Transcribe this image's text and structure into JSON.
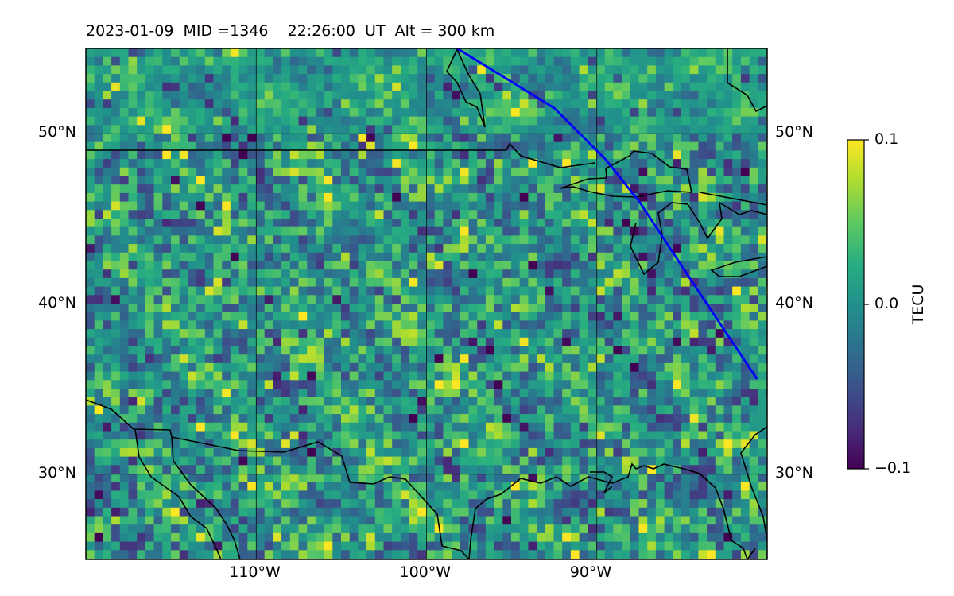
{
  "title": {
    "date": "2023-01-09",
    "mid": "MID =1346",
    "time": "22:26:00  UT",
    "alt": "Alt = 300 km"
  },
  "map": {
    "projection": "equirectangular",
    "lon_range": [
      -120,
      -80
    ],
    "lat_range": [
      25,
      55
    ],
    "gridlines": true,
    "lon_ticks": [
      {
        "value": -110,
        "label": "110°W"
      },
      {
        "value": -100,
        "label": "100°W"
      },
      {
        "value": -90,
        "label": "90°W"
      }
    ],
    "lat_ticks": [
      {
        "value": 50,
        "label": "50°N"
      },
      {
        "value": 40,
        "label": "40°N"
      },
      {
        "value": 30,
        "label": "30°N"
      }
    ],
    "field": "differential TEC, noisy mottled pattern, stronger positive patches near 28-44°N, negative patches near 48-50°N",
    "satellite_track": {
      "color": "#0000ff",
      "points": [
        [
          -98.2,
          55
        ],
        [
          -92.5,
          51.5
        ],
        [
          -89.5,
          48.5
        ],
        [
          -87.5,
          46.0
        ],
        [
          -84.2,
          41.0
        ],
        [
          -82.2,
          38.0
        ],
        [
          -80.6,
          35.6
        ]
      ]
    },
    "coastline_color": "#000000"
  },
  "colorbar": {
    "colormap": "viridis",
    "min": -0.1,
    "max": 0.1,
    "ticks": [
      {
        "value": 0.1,
        "label": "0.1"
      },
      {
        "value": 0.0,
        "label": "0.0"
      },
      {
        "value": -0.1,
        "label": "−0.1"
      }
    ],
    "label": "TECU"
  }
}
